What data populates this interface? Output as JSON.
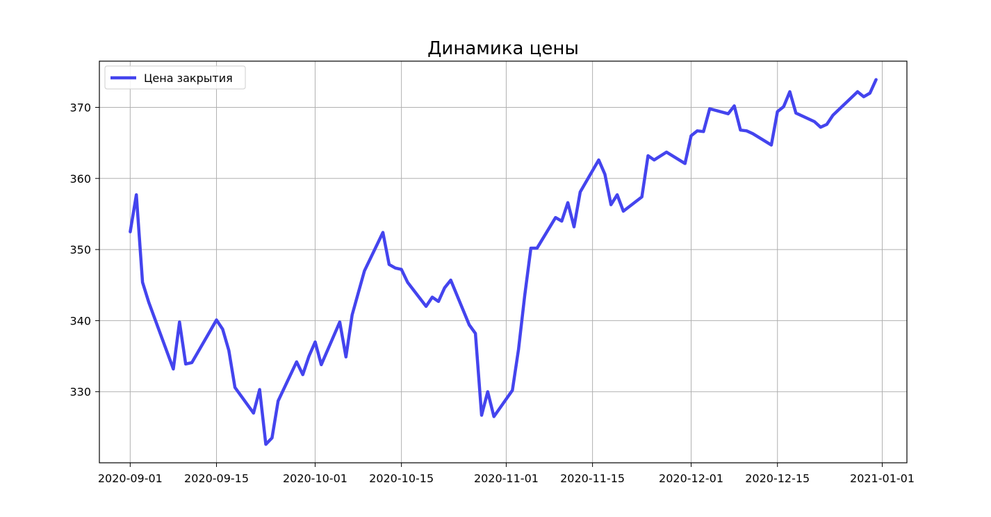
{
  "chart_data": {
    "type": "line",
    "title": "Динамика цены",
    "xlabel": "",
    "ylabel": "",
    "xlim": [
      "2020-08-27",
      "2021-01-05"
    ],
    "ylim": [
      320,
      376.5
    ],
    "grid": true,
    "legend_position": "top-left",
    "x_ticks": [
      "2020-09-01",
      "2020-09-15",
      "2020-10-01",
      "2020-10-15",
      "2020-11-01",
      "2020-11-15",
      "2020-12-01",
      "2020-12-15",
      "2021-01-01"
    ],
    "y_ticks": [
      330,
      340,
      350,
      360,
      370
    ],
    "series": [
      {
        "name": "Цена закрытия",
        "color": "#4444ee",
        "x": [
          "2020-09-01",
          "2020-09-02",
          "2020-09-03",
          "2020-09-04",
          "2020-09-08",
          "2020-09-09",
          "2020-09-10",
          "2020-09-11",
          "2020-09-14",
          "2020-09-15",
          "2020-09-16",
          "2020-09-17",
          "2020-09-18",
          "2020-09-21",
          "2020-09-22",
          "2020-09-23",
          "2020-09-24",
          "2020-09-25",
          "2020-09-28",
          "2020-09-29",
          "2020-09-30",
          "2020-10-01",
          "2020-10-02",
          "2020-10-05",
          "2020-10-06",
          "2020-10-07",
          "2020-10-09",
          "2020-10-12",
          "2020-10-13",
          "2020-10-14",
          "2020-10-15",
          "2020-10-16",
          "2020-10-19",
          "2020-10-20",
          "2020-10-21",
          "2020-10-22",
          "2020-10-23",
          "2020-10-26",
          "2020-10-27",
          "2020-10-28",
          "2020-10-29",
          "2020-10-30",
          "2020-11-02",
          "2020-11-03",
          "2020-11-04",
          "2020-11-05",
          "2020-11-06",
          "2020-11-09",
          "2020-11-10",
          "2020-11-11",
          "2020-11-12",
          "2020-11-13",
          "2020-11-16",
          "2020-11-17",
          "2020-11-18",
          "2020-11-19",
          "2020-11-20",
          "2020-11-23",
          "2020-11-24",
          "2020-11-25",
          "2020-11-27",
          "2020-11-30",
          "2020-12-01",
          "2020-12-02",
          "2020-12-03",
          "2020-12-04",
          "2020-12-07",
          "2020-12-08",
          "2020-12-09",
          "2020-12-10",
          "2020-12-11",
          "2020-12-14",
          "2020-12-15",
          "2020-12-16",
          "2020-12-17",
          "2020-12-18",
          "2020-12-21",
          "2020-12-22",
          "2020-12-23",
          "2020-12-24",
          "2020-12-28",
          "2020-12-29",
          "2020-12-30",
          "2020-12-31"
        ],
        "values": [
          352.5,
          357.7,
          345.4,
          342.6,
          333.2,
          339.8,
          333.9,
          334.1,
          338.6,
          340.1,
          338.8,
          335.8,
          330.6,
          327.0,
          330.3,
          322.6,
          323.5,
          328.7,
          334.2,
          332.4,
          335.0,
          337.0,
          333.8,
          339.8,
          334.9,
          340.8,
          347.0,
          352.4,
          347.9,
          347.4,
          347.2,
          345.4,
          342.0,
          343.3,
          342.7,
          344.6,
          345.7,
          339.4,
          338.2,
          326.7,
          330.0,
          326.5,
          330.2,
          336.0,
          343.5,
          350.2,
          350.2,
          354.5,
          354.0,
          356.6,
          353.2,
          358.1,
          362.6,
          360.6,
          356.3,
          357.7,
          355.4,
          357.4,
          363.2,
          362.6,
          363.7,
          362.1,
          366.0,
          366.7,
          366.6,
          369.8,
          369.1,
          370.2,
          366.8,
          366.7,
          366.3,
          364.7,
          369.4,
          370.1,
          372.2,
          369.2,
          368.0,
          367.2,
          367.6,
          368.9,
          372.2,
          371.5,
          372.0,
          373.9
        ]
      }
    ]
  }
}
